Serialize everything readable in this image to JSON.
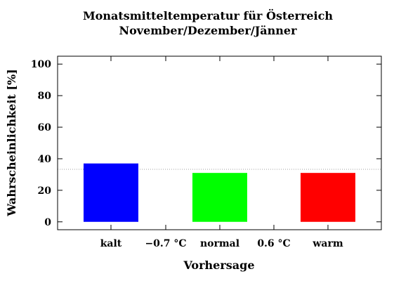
{
  "chart_data": {
    "type": "bar",
    "title": [
      "Monatsmitteltemperatur für Österreich",
      "November/Dezember/Jänner"
    ],
    "xlabel": "Vorhersage",
    "ylabel": "Wahrscheinlichkeit [%]",
    "ylim": [
      -5,
      105
    ],
    "yticks": [
      0,
      20,
      40,
      60,
      80,
      100
    ],
    "categories": [
      "kalt",
      "normal",
      "warm"
    ],
    "values": [
      37,
      31,
      31
    ],
    "colors": [
      "#0000ff",
      "#00ff00",
      "#ff0000"
    ],
    "thresholds": [
      "−0.7 °C",
      "0.6 °C"
    ],
    "reference_line": 33.3,
    "grid": false
  }
}
